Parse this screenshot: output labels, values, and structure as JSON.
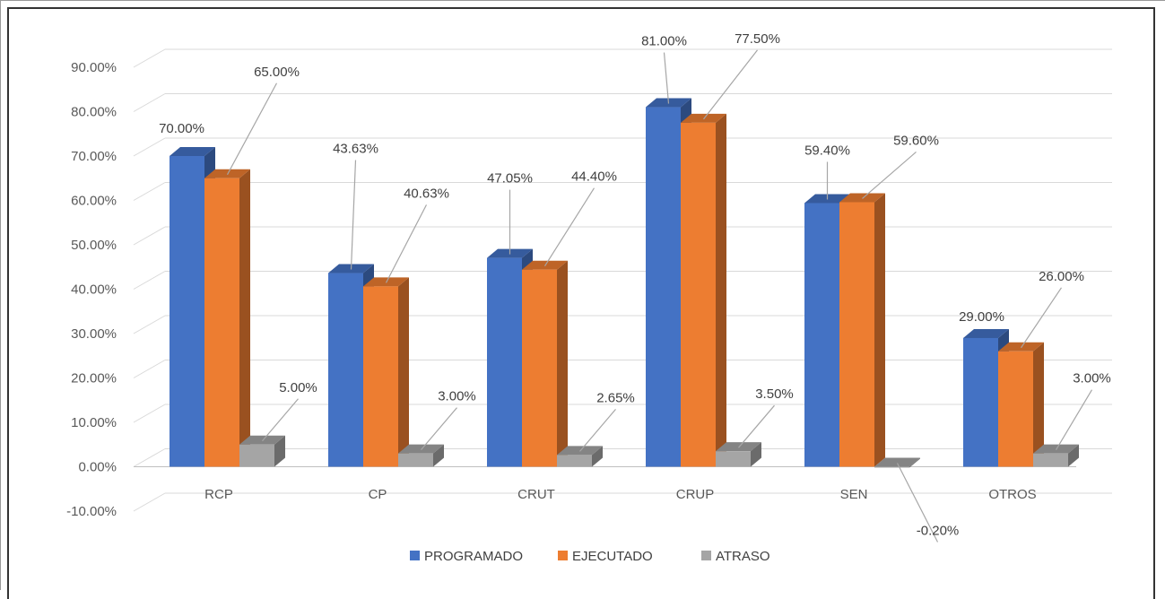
{
  "chart_data": {
    "type": "bar",
    "title": "",
    "xlabel": "",
    "ylabel": "",
    "categories": [
      "RCP",
      "CP",
      "CRUT",
      "CRUP",
      "SEN",
      "OTROS"
    ],
    "series": [
      {
        "name": "PROGRAMADO",
        "color": "#4472C4",
        "values": [
          70.0,
          43.63,
          47.05,
          81.0,
          59.4,
          29.0
        ],
        "labels": [
          "70.00%",
          "43.63%",
          "47.05%",
          "81.00%",
          "59.40%",
          "29.00%"
        ]
      },
      {
        "name": "EJECUTADO",
        "color": "#ED7D31",
        "values": [
          65.0,
          40.63,
          44.4,
          77.5,
          59.6,
          26.0
        ],
        "labels": [
          "65.00%",
          "40.63%",
          "44.40%",
          "77.50%",
          "59.60%",
          "26.00%"
        ]
      },
      {
        "name": "ATRASO",
        "color": "#A5A5A5",
        "values": [
          5.0,
          3.0,
          2.65,
          3.5,
          -0.2,
          3.0
        ],
        "labels": [
          "5.00%",
          "3.00%",
          "2.65%",
          "3.50%",
          "-0.20%",
          "3.00%"
        ]
      }
    ],
    "ylim": [
      -10,
      90
    ],
    "yticks": [
      "-10.00%",
      "0.00%",
      "10.00%",
      "20.00%",
      "30.00%",
      "40.00%",
      "50.00%",
      "60.00%",
      "70.00%",
      "80.00%",
      "90.00%"
    ],
    "grid": true,
    "legend_position": "bottom",
    "style": "3d-clustered-column"
  }
}
